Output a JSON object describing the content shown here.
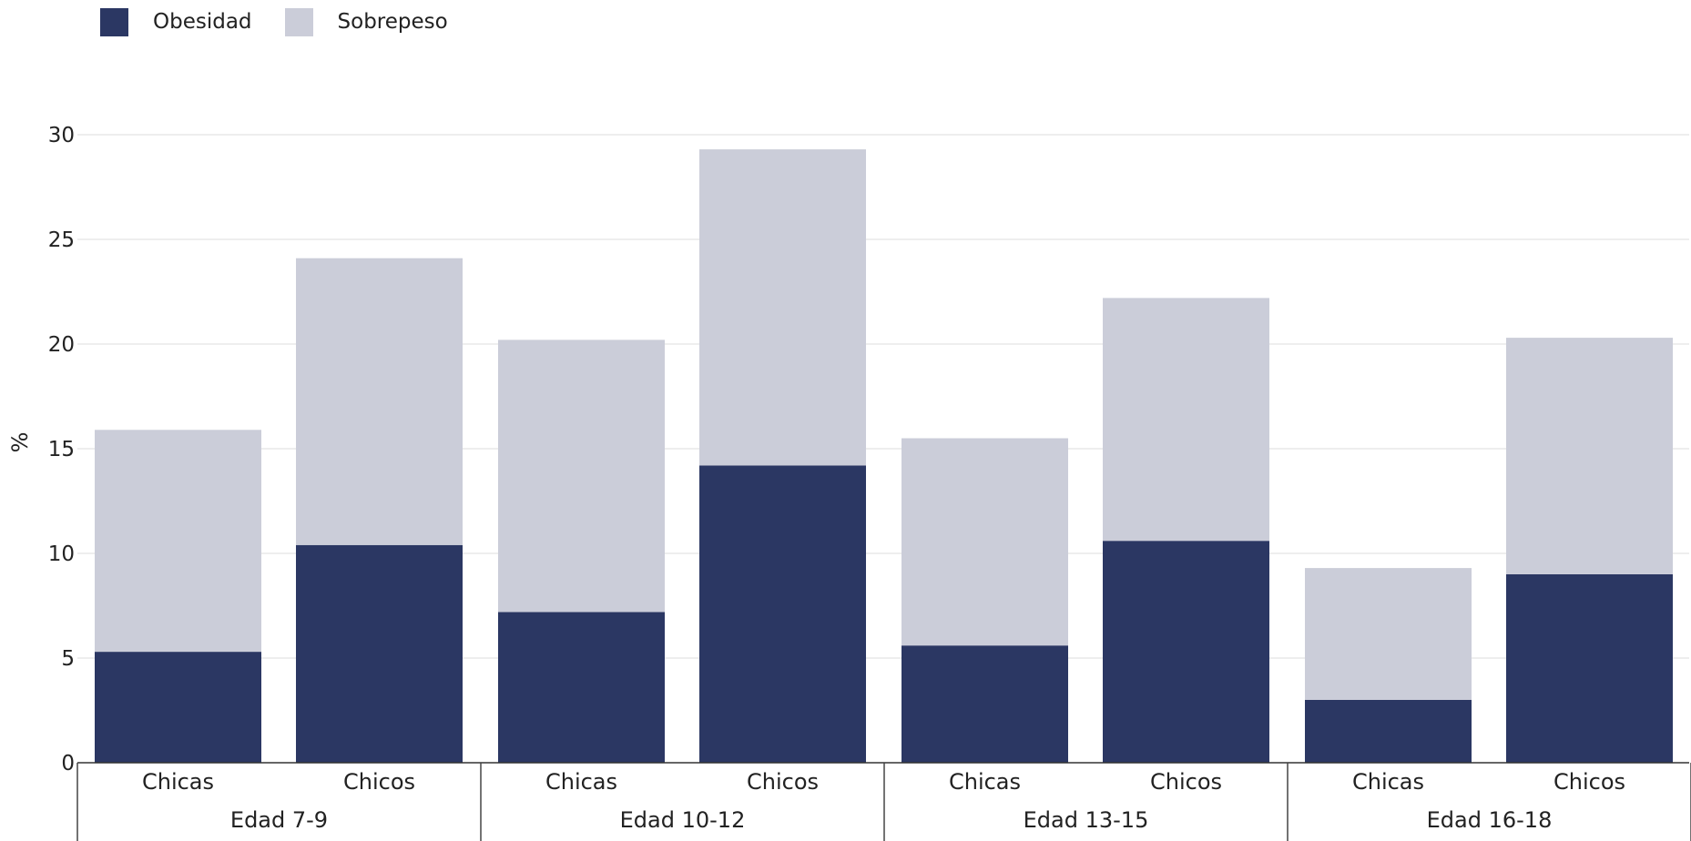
{
  "chart_data": {
    "type": "bar",
    "stacked": true,
    "ylabel": "%",
    "xlabel": "",
    "ylim": [
      0,
      30
    ],
    "yticks": [
      0,
      5,
      10,
      15,
      20,
      25,
      30
    ],
    "grid": true,
    "legend_position": "top-left",
    "groups": [
      "Edad 7-9",
      "Edad 10-12",
      "Edad 13-15",
      "Edad 16-18"
    ],
    "categories": [
      "Chicas",
      "Chicos",
      "Chicas",
      "Chicos",
      "Chicas",
      "Chicos",
      "Chicas",
      "Chicos"
    ],
    "series": [
      {
        "name": "Obesidad",
        "color": "#2b3763",
        "values": [
          5.3,
          10.4,
          7.2,
          14.2,
          5.6,
          10.6,
          3.0,
          9.0
        ]
      },
      {
        "name": "Sobrepeso",
        "color": "#cbcdd9",
        "values": [
          10.6,
          13.7,
          13.0,
          15.1,
          9.9,
          11.6,
          6.3,
          11.3
        ]
      }
    ]
  }
}
